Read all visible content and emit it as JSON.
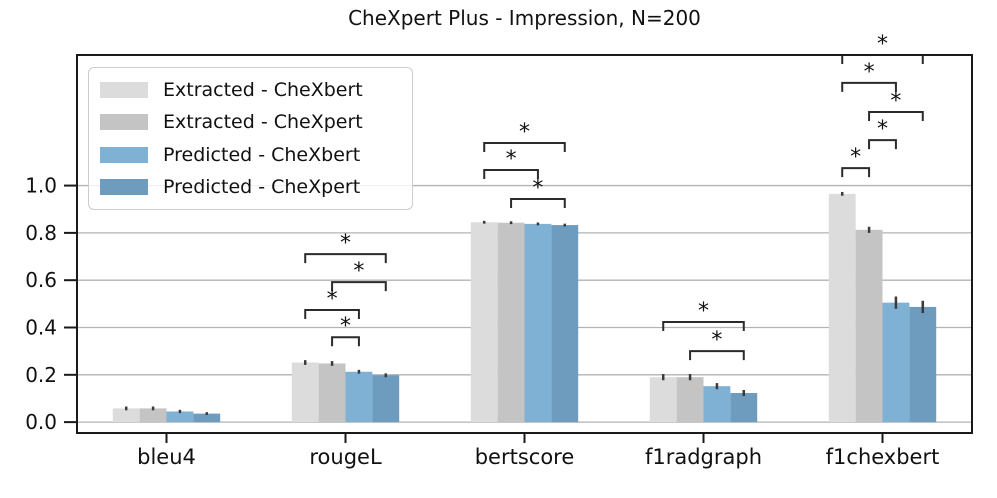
{
  "chart_data": {
    "type": "bar",
    "title": "CheXpert Plus - Impression, N=200",
    "categories": [
      "bleu4",
      "rougeL",
      "bertscore",
      "f1radgraph",
      "f1chexbert"
    ],
    "series": [
      {
        "name": "Extracted - CheXbert",
        "color": "#dcdcdc",
        "values": [
          0.058,
          0.252,
          0.845,
          0.19,
          0.965
        ],
        "errors": [
          0.008,
          0.01,
          0.006,
          0.013,
          0.008
        ]
      },
      {
        "name": "Extracted - CheXpert",
        "color": "#c4c4c4",
        "values": [
          0.058,
          0.248,
          0.843,
          0.19,
          0.813
        ],
        "errors": [
          0.008,
          0.01,
          0.006,
          0.013,
          0.013
        ]
      },
      {
        "name": "Predicted - CheXbert",
        "color": "#7fb1d5",
        "values": [
          0.045,
          0.213,
          0.838,
          0.152,
          0.505
        ],
        "errors": [
          0.007,
          0.008,
          0.006,
          0.013,
          0.026
        ]
      },
      {
        "name": "Predicted - CheXpert",
        "color": "#6d9cbf",
        "values": [
          0.036,
          0.198,
          0.833,
          0.123,
          0.487
        ],
        "errors": [
          0.006,
          0.008,
          0.006,
          0.013,
          0.026
        ]
      }
    ],
    "ylabel": "",
    "xlabel": "",
    "yticks": [
      0.0,
      0.2,
      0.4,
      0.6,
      0.8,
      1.0
    ],
    "ytick_labels": [
      "0.0",
      "0.2",
      "0.4",
      "0.6",
      "0.8",
      "1.0"
    ],
    "ylim": [
      -0.046,
      1.552
    ],
    "grid": true,
    "legend_position": "upper left",
    "significance_marker": "*",
    "brackets": [
      {
        "category": "rougeL",
        "from": 0,
        "to": 3,
        "y": 0.71,
        "label": "*"
      },
      {
        "category": "rougeL",
        "from": 1,
        "to": 3,
        "y": 0.592,
        "label": "*"
      },
      {
        "category": "rougeL",
        "from": 0,
        "to": 2,
        "y": 0.474,
        "label": "*"
      },
      {
        "category": "rougeL",
        "from": 1,
        "to": 2,
        "y": 0.359,
        "label": "*"
      },
      {
        "category": "bertscore",
        "from": 0,
        "to": 3,
        "y": 1.18,
        "label": "*"
      },
      {
        "category": "bertscore",
        "from": 0,
        "to": 2,
        "y": 1.066,
        "label": "*"
      },
      {
        "category": "bertscore",
        "from": 1,
        "to": 3,
        "y": 0.943,
        "label": "*"
      },
      {
        "category": "f1radgraph",
        "from": 0,
        "to": 3,
        "y": 0.423,
        "label": "*"
      },
      {
        "category": "f1radgraph",
        "from": 1,
        "to": 3,
        "y": 0.3,
        "label": "*"
      },
      {
        "category": "f1chexbert",
        "from": 0,
        "to": 3,
        "y": 1.552,
        "label": "*"
      },
      {
        "category": "f1chexbert",
        "from": 0,
        "to": 2,
        "y": 1.434,
        "label": "*"
      },
      {
        "category": "f1chexbert",
        "from": 1,
        "to": 3,
        "y": 1.311,
        "label": "*"
      },
      {
        "category": "f1chexbert",
        "from": 1,
        "to": 2,
        "y": 1.192,
        "label": "*"
      },
      {
        "category": "f1chexbert",
        "from": 0,
        "to": 1,
        "y": 1.074,
        "label": "*"
      }
    ],
    "colors": {
      "grid": "#b3b3b3",
      "axis": "#1a1a1a",
      "error_bar": "#3a3a3a",
      "bracket": "#2b2b2b",
      "background": "#ffffff"
    }
  }
}
